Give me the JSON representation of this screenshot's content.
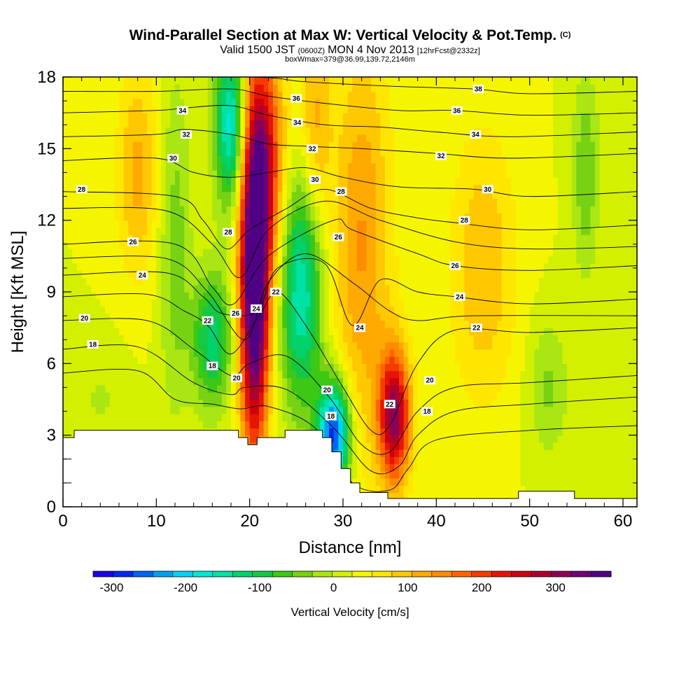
{
  "chart_data": {
    "type": "heatmap",
    "title": "Wind-Parallel Section at Max W: Vertical Velocity & Pot.Temp.",
    "copyright": "(C)",
    "subtitle_main": "Valid 1500 JST",
    "subtitle_z": "(0600Z)",
    "subtitle_date": "MON 4 Nov 2013",
    "subtitle_fcst": "[12hrFcst@2332z]",
    "subtitle2": "boxWmax=379@36.99,139.72,2146m",
    "xlabel": "Distance [nm]",
    "ylabel": "Height [Kft MSL]",
    "xlim": [
      0,
      61.5
    ],
    "ylim": [
      0,
      18
    ],
    "xticks": [
      "0",
      "10",
      "20",
      "30",
      "40",
      "50",
      "60"
    ],
    "yticks": [
      "0",
      "3",
      "6",
      "9",
      "12",
      "15",
      "18"
    ],
    "colorbar": {
      "label": "Vertical Velocity [cm/s]",
      "tick_labels": [
        "-300",
        "-200",
        "-100",
        "0",
        "100",
        "200",
        "300"
      ],
      "tick_values": [
        -300,
        -200,
        -100,
        0,
        100,
        200,
        300
      ],
      "range": [
        -325,
        375
      ],
      "colors": [
        "#1e00e6",
        "#0028f0",
        "#0064f0",
        "#00a0f0",
        "#00d2f0",
        "#00e6d2",
        "#00e1a5",
        "#00d26e",
        "#14c846",
        "#3cc814",
        "#78d214",
        "#aae614",
        "#d2f000",
        "#f5f500",
        "#ffe600",
        "#ffc800",
        "#ffaa00",
        "#ff8c00",
        "#ff6400",
        "#f53c00",
        "#e61400",
        "#cd0014",
        "#aa0032",
        "#8c0055",
        "#6e0078",
        "#500082"
      ]
    },
    "terrain_profile": [
      [
        0,
        2.9
      ],
      [
        1.2,
        2.9
      ],
      [
        1.2,
        3.2
      ],
      [
        18.8,
        3.2
      ],
      [
        18.8,
        2.9
      ],
      [
        19.8,
        2.9
      ],
      [
        19.8,
        2.6
      ],
      [
        20.8,
        2.6
      ],
      [
        20.8,
        2.9
      ],
      [
        23.8,
        2.9
      ],
      [
        23.8,
        3.2
      ],
      [
        27.8,
        3.2
      ],
      [
        27.8,
        2.9
      ],
      [
        28.8,
        2.9
      ],
      [
        28.8,
        2.3
      ],
      [
        29.8,
        2.3
      ],
      [
        29.8,
        1.6
      ],
      [
        30.8,
        1.6
      ],
      [
        30.8,
        1.0
      ],
      [
        31.8,
        1.0
      ],
      [
        31.8,
        0.6
      ],
      [
        34.8,
        0.6
      ],
      [
        34.8,
        0.35
      ],
      [
        48.8,
        0.35
      ],
      [
        48.8,
        0.65
      ],
      [
        54.8,
        0.65
      ],
      [
        54.8,
        0.35
      ],
      [
        61.5,
        0.35
      ]
    ],
    "w_features": [
      {
        "x": 20.5,
        "y": 8.5,
        "value": 370,
        "sigma_x": 1.1,
        "sigma_y": 4.5
      },
      {
        "x": 21.3,
        "y": 14.5,
        "value": 240,
        "sigma_x": 1.6,
        "sigma_y": 3.5
      },
      {
        "x": 35.5,
        "y": 3.8,
        "value": 280,
        "sigma_x": 1.2,
        "sigma_y": 2.0
      },
      {
        "x": 32.0,
        "y": 11.0,
        "value": 110,
        "sigma_x": 2.2,
        "sigma_y": 6.0
      },
      {
        "x": 29.0,
        "y": 3.0,
        "value": -320,
        "sigma_x": 1.2,
        "sigma_y": 1.6
      },
      {
        "x": 25.5,
        "y": 9.0,
        "value": -190,
        "sigma_x": 1.6,
        "sigma_y": 3.5
      },
      {
        "x": 18.0,
        "y": 16.0,
        "value": -220,
        "sigma_x": 1.2,
        "sigma_y": 2.5
      },
      {
        "x": 16.0,
        "y": 7.0,
        "value": -150,
        "sigma_x": 1.5,
        "sigma_y": 2.0
      },
      {
        "x": 12.0,
        "y": 11.0,
        "value": -70,
        "sigma_x": 1.2,
        "sigma_y": 5.0
      },
      {
        "x": 8.0,
        "y": 14.0,
        "value": 90,
        "sigma_x": 1.6,
        "sigma_y": 3.0
      },
      {
        "x": 27.0,
        "y": 16.0,
        "value": 90,
        "sigma_x": 1.2,
        "sigma_y": 3.0
      },
      {
        "x": 45.0,
        "y": 10.0,
        "value": 80,
        "sigma_x": 2.5,
        "sigma_y": 4.0
      },
      {
        "x": 52.0,
        "y": 5.0,
        "value": -60,
        "sigma_x": 1.5,
        "sigma_y": 2.0
      },
      {
        "x": 56.0,
        "y": 14.0,
        "value": -80,
        "sigma_x": 1.0,
        "sigma_y": 3.0
      },
      {
        "x": 4.0,
        "y": 4.5,
        "value": -30,
        "sigma_x": 2.0,
        "sigma_y": 1.5
      }
    ],
    "theta_contours": [
      {
        "label": "18",
        "points": [
          [
            0,
            6.6
          ],
          [
            8,
            6.7
          ],
          [
            14,
            5.2
          ],
          [
            18,
            4.7
          ],
          [
            19.5,
            5.0
          ],
          [
            24,
            4.9
          ],
          [
            29,
            3.3
          ],
          [
            33,
            1.5
          ],
          [
            36,
            1.7
          ],
          [
            38,
            3.0
          ],
          [
            42,
            4.0
          ],
          [
            50,
            4.3
          ],
          [
            61.5,
            4.6
          ]
        ],
        "labels": [
          [
            3.2,
            6.8
          ],
          [
            16,
            5.9
          ],
          [
            28.7,
            3.8
          ],
          [
            39,
            4.0
          ]
        ]
      },
      {
        "label": "20",
        "points": [
          [
            0,
            7.8
          ],
          [
            9,
            7.8
          ],
          [
            14,
            6.6
          ],
          [
            18,
            5.5
          ],
          [
            20,
            6.0
          ],
          [
            24,
            6.3
          ],
          [
            28.5,
            4.6
          ],
          [
            32,
            2.6
          ],
          [
            35,
            2.3
          ],
          [
            38,
            4.0
          ],
          [
            42,
            5.0
          ],
          [
            50,
            5.2
          ],
          [
            61.5,
            5.5
          ]
        ],
        "labels": [
          [
            2.3,
            7.9
          ],
          [
            18.6,
            5.4
          ],
          [
            28.3,
            4.9
          ],
          [
            39.3,
            5.3
          ]
        ]
      },
      {
        "label": "22",
        "points": [
          [
            0,
            8.8
          ],
          [
            9,
            8.9
          ],
          [
            13,
            8.2
          ],
          [
            15.5,
            7.6
          ],
          [
            18,
            6.4
          ],
          [
            21,
            8.0
          ],
          [
            23,
            9.0
          ],
          [
            26,
            7.6
          ],
          [
            30,
            5.0
          ],
          [
            33,
            3.2
          ],
          [
            35,
            3.4
          ],
          [
            38,
            6.0
          ],
          [
            42,
            7.4
          ],
          [
            50,
            7.3
          ],
          [
            61.5,
            7.5
          ]
        ],
        "labels": [
          [
            15.5,
            7.8
          ],
          [
            22.8,
            9.0
          ],
          [
            35,
            4.3
          ],
          [
            44.3,
            7.5
          ]
        ]
      },
      {
        "label": "24",
        "points": [
          [
            0,
            9.7
          ],
          [
            11,
            9.8
          ],
          [
            15,
            8.8
          ],
          [
            17,
            8.1
          ],
          [
            20.8,
            8.2
          ],
          [
            23,
            10.0
          ],
          [
            28,
            10.2
          ],
          [
            31,
            7.6
          ],
          [
            34,
            9.5
          ],
          [
            38,
            9.0
          ],
          [
            42,
            8.8
          ],
          [
            50,
            8.5
          ],
          [
            61.5,
            8.7
          ]
        ],
        "labels": [
          [
            8.5,
            9.7
          ],
          [
            20.7,
            8.3
          ],
          [
            31.8,
            7.5
          ],
          [
            42.5,
            8.8
          ]
        ]
      },
      {
        "label": "26",
        "points": [
          [
            0,
            11.0
          ],
          [
            12,
            11.0
          ],
          [
            16,
            9.2
          ],
          [
            18.3,
            8.5
          ],
          [
            22,
            10.5
          ],
          [
            29,
            12.0
          ],
          [
            31,
            11.6
          ],
          [
            38,
            10.6
          ],
          [
            42,
            10.1
          ],
          [
            50,
            9.9
          ],
          [
            61.5,
            10.1
          ]
        ],
        "labels": [
          [
            7.5,
            11.1
          ],
          [
            18.5,
            8.1
          ],
          [
            29.5,
            11.3
          ],
          [
            42.0,
            10.1
          ]
        ]
      },
      {
        "label": "28",
        "points": [
          [
            0,
            13.2
          ],
          [
            12,
            13.0
          ],
          [
            15,
            12.0
          ],
          [
            17.5,
            10.8
          ],
          [
            20,
            11.6
          ],
          [
            24,
            12.5
          ],
          [
            28,
            13.3
          ],
          [
            33,
            12.5
          ],
          [
            38,
            12.1
          ],
          [
            42,
            11.9
          ],
          [
            50,
            11.6
          ],
          [
            61.5,
            11.8
          ]
        ],
        "labels": [
          [
            2.0,
            13.3
          ],
          [
            17.7,
            11.5
          ],
          [
            29.8,
            13.2
          ],
          [
            43.0,
            12.0
          ]
        ]
      },
      {
        "label": "30",
        "points": [
          [
            0,
            14.5
          ],
          [
            10,
            14.6
          ],
          [
            14,
            14.0
          ],
          [
            18,
            13.8
          ],
          [
            22,
            14.0
          ],
          [
            26,
            14.2
          ],
          [
            30,
            13.8
          ],
          [
            36,
            13.4
          ],
          [
            44,
            13.3
          ],
          [
            50,
            13.0
          ],
          [
            61.5,
            13.2
          ]
        ],
        "labels": [
          [
            11.8,
            14.6
          ],
          [
            27,
            13.7
          ],
          [
            45.5,
            13.3
          ]
        ]
      },
      {
        "label": "32",
        "points": [
          [
            0,
            15.5
          ],
          [
            10,
            15.6
          ],
          [
            13,
            15.8
          ],
          [
            18,
            15.6
          ],
          [
            22,
            15.2
          ],
          [
            26,
            15.1
          ],
          [
            32,
            15.0
          ],
          [
            40,
            14.8
          ],
          [
            48,
            14.6
          ],
          [
            61.5,
            14.8
          ]
        ],
        "labels": [
          [
            13.2,
            15.6
          ],
          [
            26.7,
            15.0
          ],
          [
            40.5,
            14.7
          ]
        ]
      },
      {
        "label": "34",
        "points": [
          [
            0,
            16.5
          ],
          [
            10,
            16.6
          ],
          [
            13,
            16.7
          ],
          [
            18,
            16.8
          ],
          [
            22,
            16.4
          ],
          [
            28,
            16.0
          ],
          [
            34,
            15.9
          ],
          [
            40,
            15.7
          ],
          [
            48,
            15.5
          ],
          [
            61.5,
            15.7
          ]
        ],
        "labels": [
          [
            12.8,
            16.6
          ],
          [
            25.1,
            16.1
          ],
          [
            44.2,
            15.6
          ]
        ]
      },
      {
        "label": "36",
        "points": [
          [
            0,
            17.4
          ],
          [
            10,
            17.4
          ],
          [
            18,
            17.5
          ],
          [
            22,
            17.2
          ],
          [
            28,
            16.9
          ],
          [
            36,
            16.6
          ],
          [
            42,
            16.6
          ],
          [
            50,
            16.4
          ],
          [
            61.5,
            16.5
          ]
        ],
        "labels": [
          [
            25.0,
            17.1
          ],
          [
            42.2,
            16.6
          ]
        ]
      },
      {
        "label": "38",
        "points": [
          [
            0,
            18.0
          ],
          [
            20,
            18.0
          ],
          [
            26,
            17.8
          ],
          [
            36,
            17.6
          ],
          [
            44,
            17.5
          ],
          [
            50,
            17.3
          ],
          [
            61.5,
            17.4
          ]
        ],
        "labels": [
          [
            44.5,
            17.5
          ]
        ]
      },
      {
        "label": "",
        "points": [
          [
            0,
            12.5
          ],
          [
            11,
            12.4
          ],
          [
            16,
            11.0
          ],
          [
            19,
            9.6
          ],
          [
            22,
            11.6
          ],
          [
            28,
            12.8
          ],
          [
            34,
            12.0
          ],
          [
            42,
            11.1
          ],
          [
            50,
            10.8
          ],
          [
            61.5,
            10.9
          ]
        ],
        "labels": []
      },
      {
        "label": "",
        "points": [
          [
            0,
            10.4
          ],
          [
            11,
            10.4
          ],
          [
            15.5,
            9.0
          ],
          [
            19.5,
            7.0
          ],
          [
            22,
            9.4
          ],
          [
            26,
            10.6
          ],
          [
            31,
            9.4
          ],
          [
            35,
            8.2
          ],
          [
            38,
            7.8
          ],
          [
            44,
            8.0
          ],
          [
            61.5,
            8.0
          ]
        ],
        "labels": []
      },
      {
        "label": "",
        "points": [
          [
            0,
            5.6
          ],
          [
            8,
            5.7
          ],
          [
            12,
            4.5
          ],
          [
            16,
            4.3
          ],
          [
            19,
            4.1
          ],
          [
            22,
            4.2
          ],
          [
            27,
            3.3
          ],
          [
            31,
            1.0
          ],
          [
            35,
            0.7
          ],
          [
            37,
            1.6
          ],
          [
            40,
            2.8
          ],
          [
            50,
            3.2
          ],
          [
            61.5,
            3.4
          ]
        ],
        "labels": []
      }
    ]
  }
}
